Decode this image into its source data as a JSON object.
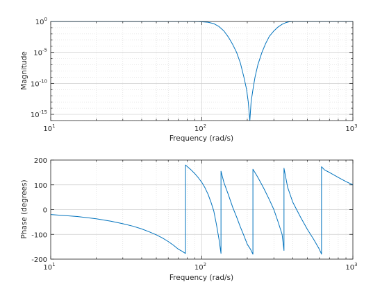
{
  "colors": {
    "series": "#0072BD"
  },
  "chart_data": [
    {
      "type": "line",
      "xscale": "log",
      "yscale": "log",
      "xlim": [
        10,
        1000
      ],
      "ylim": [
        1e-16,
        1
      ],
      "xlabel": "Frequency (rad/s)",
      "ylabel": "Magnitude",
      "grid": true,
      "x_ticks": [
        {
          "base": "10",
          "exp": "1"
        },
        {
          "base": "10",
          "exp": "2"
        },
        {
          "base": "10",
          "exp": "3"
        }
      ],
      "y_ticks": [
        {
          "base": "10",
          "exp": "0"
        },
        {
          "base": "10",
          "exp": "-5"
        },
        {
          "base": "10",
          "exp": "-10"
        },
        {
          "base": "10",
          "exp": "-15"
        }
      ],
      "series": [
        {
          "x": [
            10,
            20,
            50,
            80,
            95,
            110,
            120,
            130,
            140,
            150,
            160,
            170,
            180,
            190,
            198,
            203,
            208,
            212,
            218,
            225,
            235,
            250,
            265,
            280,
            300,
            320,
            340,
            360,
            380,
            400,
            450,
            500,
            600,
            1000
          ],
          "y": [
            1,
            1,
            1,
            1,
            0.98,
            0.75,
            0.45,
            0.15,
            0.03,
            0.003,
            0.0002,
            1e-05,
            2e-07,
            1e-09,
            1e-11,
            1e-13,
            1e-16,
            1e-13,
            1e-11,
            1e-09,
            1e-07,
            1e-05,
            0.0003,
            0.004,
            0.03,
            0.13,
            0.35,
            0.65,
            0.9,
            1,
            1,
            1,
            1,
            1
          ]
        }
      ]
    },
    {
      "type": "line",
      "xscale": "log",
      "yscale": "linear",
      "xlim": [
        10,
        1000
      ],
      "ylim": [
        -200,
        200
      ],
      "xlabel": "Frequency (rad/s)",
      "ylabel": "Phase (degrees)",
      "grid": true,
      "x_ticks": [
        {
          "base": "10",
          "exp": "1"
        },
        {
          "base": "10",
          "exp": "2"
        },
        {
          "base": "10",
          "exp": "3"
        }
      ],
      "y_ticks": [
        "200",
        "100",
        "0",
        "-100",
        "-200"
      ],
      "series": [
        {
          "x": [
            10,
            15,
            20,
            25,
            30,
            35,
            40,
            45,
            50,
            55,
            60,
            65,
            70,
            74,
            78,
            78,
            80,
            85,
            90,
            95,
            100,
            105,
            110,
            115,
            120,
            125,
            130,
            134,
            134,
            140,
            150,
            160,
            170,
            180,
            190,
            200,
            210,
            218,
            218,
            230,
            240,
            250,
            260,
            280,
            300,
            320,
            340,
            350,
            350,
            370,
            400,
            450,
            500,
            550,
            600,
            620,
            620,
            650,
            700,
            800,
            900,
            1000
          ],
          "y": [
            -20,
            -28,
            -37,
            -47,
            -57,
            -67,
            -78,
            -90,
            -102,
            -115,
            -129,
            -144,
            -160,
            -168,
            -177,
            180,
            174,
            160,
            145,
            128,
            110,
            88,
            62,
            30,
            -5,
            -60,
            -120,
            -177,
            155,
            110,
            60,
            10,
            -30,
            -70,
            -105,
            -140,
            -160,
            -180,
            163,
            140,
            120,
            100,
            80,
            40,
            0,
            -50,
            -100,
            -165,
            167,
            90,
            30,
            -30,
            -80,
            -120,
            -160,
            -180,
            173,
            160,
            150,
            130,
            113,
            100
          ]
        }
      ]
    }
  ]
}
